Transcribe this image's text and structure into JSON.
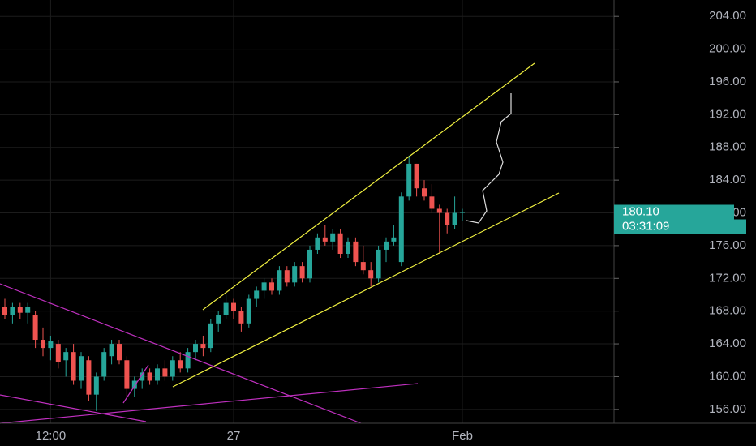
{
  "chart_data": {
    "type": "candlestick",
    "categories": [
      null,
      null,
      null,
      null,
      null,
      null,
      "12:00",
      null,
      null,
      null,
      null,
      null,
      null,
      null,
      null,
      null,
      null,
      null,
      null,
      null,
      null,
      null,
      null,
      null,
      null,
      null,
      null,
      null,
      null,
      null,
      "27",
      null,
      null,
      null,
      null,
      null,
      null,
      null,
      null,
      null,
      null,
      null,
      null,
      null,
      null,
      null,
      null,
      null,
      null,
      null,
      null,
      null,
      null,
      null,
      null,
      null,
      null,
      null,
      null,
      null,
      "Feb"
    ],
    "open": [
      168.5,
      167.5,
      168.5,
      167.8,
      167.5,
      164.5,
      163.5,
      164,
      162,
      163,
      159.5,
      162,
      157.8,
      160,
      162.5,
      164,
      162,
      158.5,
      159.5,
      160.5,
      159.5,
      161,
      160,
      162,
      161,
      163,
      164,
      163.5,
      166.5,
      167.5,
      169,
      168,
      166.5,
      169.5,
      170.5,
      171.5,
      170.5,
      173,
      171.5,
      173.5,
      172,
      175.5,
      177,
      176.5,
      177.5,
      175,
      176.5,
      174,
      173,
      172,
      175.5,
      176.5,
      174,
      182,
      186,
      183,
      182,
      180.5,
      180,
      178.5,
      180
    ],
    "high": [
      169.5,
      169,
      169,
      169,
      168,
      166,
      165,
      164.5,
      163.5,
      164,
      163,
      162.5,
      160.5,
      163.5,
      164.5,
      164.5,
      162.5,
      160,
      161,
      161,
      161.5,
      162,
      162.5,
      163,
      163.5,
      164.5,
      165,
      167,
      168,
      170,
      169.5,
      168.5,
      170,
      171,
      172,
      172,
      173.5,
      173.5,
      174,
      174,
      176,
      177.5,
      178.5,
      178,
      178,
      177,
      177,
      176,
      174,
      176,
      177,
      178.5,
      182.5,
      187,
      186,
      184,
      183.5,
      181,
      180.5,
      182,
      180.5
    ],
    "low": [
      167,
      166.5,
      167,
      166.5,
      163.5,
      162.5,
      162,
      161,
      160,
      159,
      158.5,
      157,
      155.8,
      159.5,
      161.5,
      161.5,
      157.5,
      157.5,
      158.5,
      159,
      159,
      159.5,
      159.5,
      160.5,
      160.5,
      162,
      162.5,
      163,
      165.5,
      167,
      167,
      165.5,
      166,
      168.5,
      169.5,
      170,
      170,
      171,
      171,
      171.5,
      171.5,
      175,
      176,
      175.5,
      174.5,
      174.5,
      173.5,
      172.5,
      171,
      171.5,
      174,
      176,
      173.5,
      181.5,
      182,
      181.5,
      180,
      175,
      177.5,
      178,
      179
    ],
    "close": [
      167.5,
      168.5,
      167.8,
      168.5,
      164.5,
      163.5,
      164.3,
      161.8,
      163,
      159.5,
      162.5,
      157.8,
      160,
      163,
      164,
      162,
      158.5,
      159.5,
      160.5,
      159.5,
      161,
      160,
      162,
      161,
      163,
      164,
      163.5,
      166.5,
      167.5,
      169,
      168,
      166.5,
      169.5,
      170.5,
      171.5,
      170.5,
      173,
      171.5,
      173.5,
      172,
      175.5,
      177,
      176.5,
      177.5,
      175,
      176.5,
      174,
      173,
      172,
      175.5,
      176.5,
      177,
      182,
      186,
      183,
      182,
      180.5,
      180,
      178.5,
      180,
      180.1
    ],
    "up_color": "#26a69a",
    "down_color": "#ef5350",
    "ylim": [
      154.3,
      206
    ],
    "yticks": [
      {
        "value": 156,
        "label": "156.00"
      },
      {
        "value": 160,
        "label": "160.00"
      },
      {
        "value": 164,
        "label": "164.00"
      },
      {
        "value": 168,
        "label": "168.00"
      },
      {
        "value": 172,
        "label": "172.00"
      },
      {
        "value": 176,
        "label": "176.00"
      },
      {
        "value": 180,
        "label": "180.00"
      },
      {
        "value": 184,
        "label": "184.00"
      },
      {
        "value": 188,
        "label": "188.00"
      },
      {
        "value": 192,
        "label": "192.00"
      },
      {
        "value": 196,
        "label": "196.00"
      },
      {
        "value": 200,
        "label": "200.00"
      },
      {
        "value": 204,
        "label": "204.00"
      }
    ],
    "grid": true,
    "last_price": {
      "value": 180.1,
      "label": "180.10"
    },
    "countdown": "03:31:09"
  }
}
